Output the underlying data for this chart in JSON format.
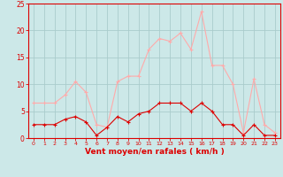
{
  "hours": [
    0,
    1,
    2,
    3,
    4,
    5,
    6,
    7,
    8,
    9,
    10,
    11,
    12,
    13,
    14,
    15,
    16,
    17,
    18,
    19,
    20,
    21,
    22,
    23
  ],
  "wind_mean": [
    2.5,
    2.5,
    2.5,
    3.5,
    4.0,
    3.0,
    0.5,
    2.0,
    4.0,
    3.0,
    4.5,
    5.0,
    6.5,
    6.5,
    6.5,
    5.0,
    6.5,
    5.0,
    2.5,
    2.5,
    0.5,
    2.5,
    0.5,
    0.5
  ],
  "wind_gust": [
    6.5,
    6.5,
    6.5,
    8.0,
    10.5,
    8.5,
    2.5,
    2.0,
    10.5,
    11.5,
    11.5,
    16.5,
    18.5,
    18.0,
    19.5,
    16.5,
    23.5,
    13.5,
    13.5,
    10.0,
    1.0,
    11.0,
    2.5,
    1.0
  ],
  "mean_color": "#dd0000",
  "gust_color": "#ffaaaa",
  "background_color": "#cce8e8",
  "grid_color": "#aacccc",
  "xlabel": "Vent moyen/en rafales ( km/h )",
  "xlabel_color": "#dd0000",
  "ylim": [
    0,
    25
  ],
  "yticks": [
    0,
    5,
    10,
    15,
    20,
    25
  ],
  "tick_color": "#dd0000",
  "spine_color": "#dd0000"
}
